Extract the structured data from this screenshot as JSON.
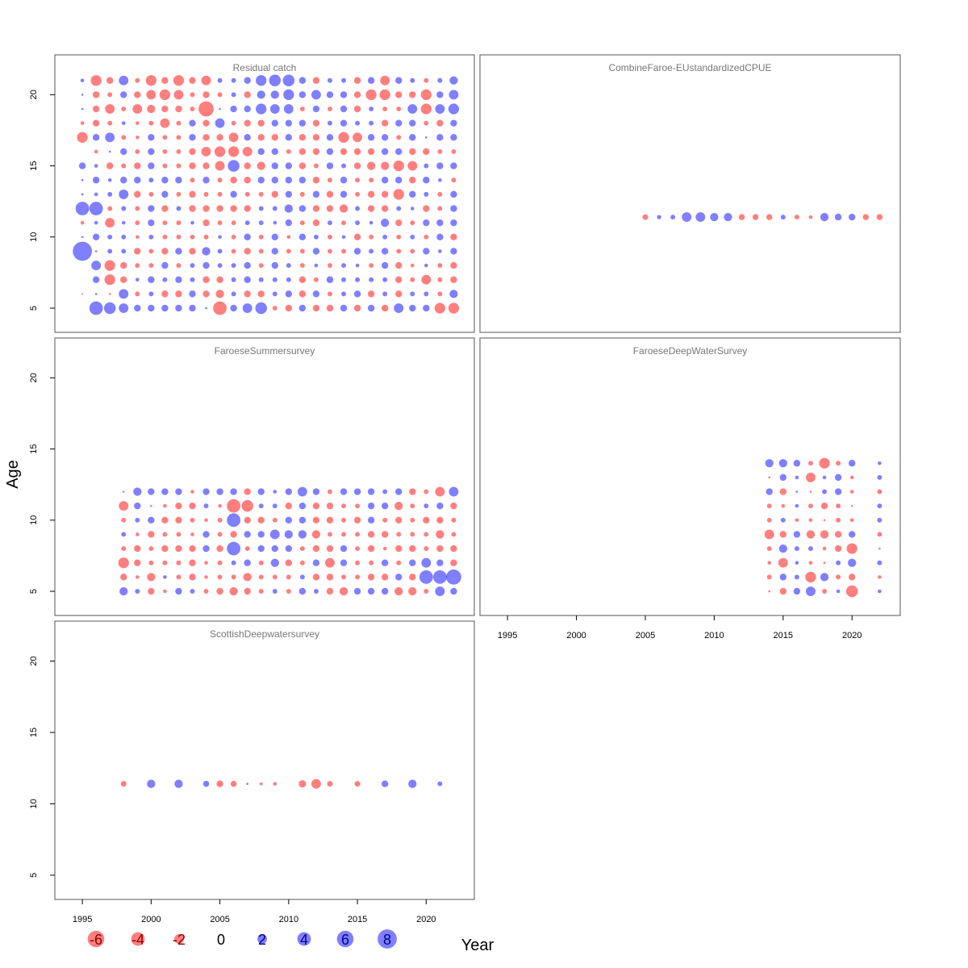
{
  "colors": {
    "positive": "#0000ff",
    "negative": "#ff0000",
    "zero": "#000000",
    "frame": "#555555"
  },
  "chart_data": {
    "type": "scatter",
    "subtype": "bubble-residuals",
    "xlabel": "Year",
    "ylabel": "Age",
    "xlim": [
      1993,
      2023.5
    ],
    "ylim": [
      3.3,
      22.8
    ],
    "xticks": [
      1995,
      2000,
      2005,
      2010,
      2015,
      2020
    ],
    "yticks": [
      5,
      10,
      15,
      20
    ],
    "legend": {
      "position": "bottom-left",
      "entries": [
        {
          "label": "-6",
          "value": -6
        },
        {
          "label": "-4",
          "value": -4
        },
        {
          "label": "-2",
          "value": -2
        },
        {
          "label": "0",
          "value": 0
        },
        {
          "label": "2",
          "value": 2
        },
        {
          "label": "4",
          "value": 4
        },
        {
          "label": "6",
          "value": 6
        },
        {
          "label": "8",
          "value": 8
        }
      ]
    },
    "panels": [
      {
        "title": "Residual catch",
        "ages": [
          5,
          6,
          7,
          8,
          9,
          10,
          11,
          12,
          13,
          14,
          15,
          16,
          17,
          18,
          19,
          20,
          21
        ],
        "years": [
          1995,
          1996,
          1997,
          1998,
          1999,
          2000,
          2001,
          2002,
          2003,
          2004,
          2005,
          2006,
          2007,
          2008,
          2009,
          2010,
          2011,
          2012,
          2013,
          2014,
          2015,
          2016,
          2017,
          2018,
          2019,
          2020,
          2021,
          2022
        ],
        "residuals": [
          [
            0,
            4,
            3,
            2,
            1,
            1,
            1,
            1,
            1,
            0.1,
            -4,
            1,
            2,
            3,
            -0.5,
            -1,
            1,
            -1,
            -1,
            1,
            -1,
            1,
            -1,
            2,
            1,
            1,
            -2.5,
            -2.5
          ],
          [
            0.05,
            0.1,
            -0.1,
            2,
            -0.5,
            0.5,
            -1,
            -1,
            1,
            -1,
            -1.5,
            0.5,
            -1,
            -1,
            0.5,
            1,
            -1,
            1,
            -0.5,
            0.5,
            1,
            -1,
            0.5,
            -1,
            0.5,
            0.5,
            -0.5,
            1.5
          ],
          [
            0,
            1,
            -2.5,
            -1,
            0.3,
            1,
            0.5,
            1,
            0.5,
            -1,
            -1,
            0.5,
            1,
            0.5,
            0.5,
            0.5,
            -1,
            -0.5,
            1,
            0.5,
            0.5,
            0.5,
            0.5,
            -1,
            -0.5,
            -2,
            -0.5,
            -1
          ],
          [
            0,
            2,
            -2.5,
            -1,
            -0.5,
            -0.5,
            1,
            -0.5,
            0.5,
            1,
            0.5,
            0.5,
            1,
            -0.5,
            1,
            0.5,
            -0.5,
            0.3,
            -0.5,
            0.5,
            0.3,
            -0.5,
            1,
            -1,
            -0.3,
            0.3,
            -0.5,
            -1
          ],
          [
            8,
            0.1,
            0.5,
            0.5,
            -1,
            -0.5,
            -1,
            1,
            -1,
            1.5,
            0.5,
            -0.5,
            -1,
            -0.5,
            1,
            -0.5,
            -0.5,
            1,
            -0.5,
            -0.5,
            1,
            0.5,
            1,
            -0.5,
            -0.5,
            1,
            0.3,
            1
          ],
          [
            0.1,
            1,
            0.5,
            0.5,
            -0.3,
            0.5,
            -0.5,
            -0.5,
            -0.5,
            -0.5,
            0.3,
            -0.5,
            1,
            -0.5,
            1,
            -0.3,
            1,
            0.5,
            -0.5,
            0.3,
            -1,
            -0.5,
            0.5,
            -0.5,
            0.5,
            -0.5,
            1,
            -1
          ],
          [
            -0.3,
            0.3,
            -2,
            0.3,
            -0.5,
            1,
            -0.5,
            -0.5,
            0.3,
            -1,
            -0.5,
            -0.5,
            0.5,
            0.5,
            0.3,
            1,
            -0.5,
            -1,
            0.5,
            -0.5,
            0.5,
            0.3,
            1.5,
            -1,
            -0.5,
            1,
            1,
            1
          ],
          [
            4,
            4,
            -0.5,
            0.5,
            -0.5,
            1,
            -1,
            0.5,
            -1,
            -1,
            -1,
            -1,
            -1,
            0.5,
            0.5,
            1.5,
            1,
            -1,
            -1,
            -1.5,
            0.5,
            -1,
            -1,
            0.5,
            0.3,
            -1,
            -0.5,
            1
          ],
          [
            0.1,
            0.3,
            0.5,
            2,
            -1,
            -0.5,
            1,
            -0.5,
            -1,
            -0.5,
            -0.5,
            1,
            -0.5,
            -0.5,
            -1,
            1,
            -0.5,
            1,
            -1,
            1,
            -0.5,
            -1,
            -1,
            -2.5,
            1,
            0.5,
            -0.5,
            1
          ],
          [
            0.1,
            1,
            0.3,
            1,
            1,
            0.5,
            1,
            1,
            -0.5,
            1,
            -0.5,
            -1,
            -1,
            1,
            1,
            1,
            1,
            -1,
            -0.5,
            1,
            -0.5,
            -0.5,
            1,
            1,
            -1,
            1,
            0.3,
            -0.5
          ],
          [
            1,
            0.3,
            -1,
            -0.5,
            -1,
            1,
            -0.5,
            -0.5,
            -1,
            -1,
            -2,
            3,
            -1,
            -1.5,
            1,
            1,
            -1,
            -0.5,
            1,
            0.5,
            -1,
            -1.5,
            -1.5,
            -2.5,
            -2,
            0.5,
            1,
            1
          ],
          [
            0,
            -0.3,
            0.1,
            1,
            -0.5,
            1,
            -0.5,
            -0.5,
            -1,
            -2,
            -2.5,
            -2.5,
            -2,
            1,
            1,
            -0.5,
            -1,
            -1,
            1,
            -1,
            -1,
            -1,
            1,
            1,
            -1,
            -1,
            -0.5,
            -0.5
          ],
          [
            -2.5,
            1,
            2,
            -0.5,
            -0.3,
            1,
            -0.5,
            -0.5,
            1,
            -1,
            -1,
            -2,
            1,
            -1,
            -1,
            1,
            -1,
            -1,
            1,
            -2.5,
            -2,
            1,
            1,
            -0.5,
            1,
            0.1,
            1,
            1
          ],
          [
            -0.3,
            -1,
            -0.5,
            0.3,
            -0.3,
            -0.5,
            -2,
            -0.5,
            1,
            -1,
            2,
            -0.5,
            -1,
            -1,
            1,
            1,
            1,
            -1,
            0.5,
            1,
            0.5,
            0.5,
            -1,
            1,
            1,
            -0.5,
            -1,
            1
          ],
          [
            0.1,
            -1,
            -2,
            -0.5,
            -2,
            -1.5,
            -1,
            -1,
            -0.5,
            -5,
            0.1,
            1,
            1,
            2.5,
            2,
            2,
            -0.5,
            1,
            -0.5,
            1,
            -1,
            0.5,
            -0.5,
            -0.5,
            2,
            -2.5,
            2,
            2.5
          ],
          [
            0.1,
            -1,
            -0.5,
            1,
            -1,
            -2,
            -2.5,
            -2,
            -0.5,
            -1,
            -0.5,
            0.5,
            -1,
            1.5,
            1.5,
            2.5,
            1,
            2,
            1,
            1,
            -1,
            -2.5,
            -2.5,
            -1,
            -1,
            -2.5,
            1,
            2
          ],
          [
            0.3,
            -2.5,
            -1,
            2,
            -0.5,
            -2.5,
            -1,
            -2.5,
            -1,
            -2,
            0.5,
            0.5,
            1,
            2.5,
            3,
            3,
            1,
            -1,
            0.5,
            0.5,
            -1,
            1,
            -2,
            1,
            0.5,
            -0.5,
            0.5,
            1.5
          ]
        ]
      },
      {
        "title": "CombineFaroe-EUstandardizedCPUE",
        "ages": [
          11.4
        ],
        "years": [
          2005,
          2006,
          2007,
          2008,
          2009,
          2010,
          2011,
          2012,
          2013,
          2014,
          2015,
          2016,
          2017,
          2018,
          2019,
          2020,
          2021,
          2022
        ],
        "residuals": [
          [
            -0.7,
            0.4,
            0.5,
            2,
            2,
            1.5,
            1.5,
            -0.8,
            -0.8,
            -0.8,
            0.5,
            -0.5,
            -0.3,
            1.5,
            1,
            1,
            -0.8,
            -0.8
          ]
        ]
      },
      {
        "title": "FaroeseSummersurvey",
        "ages": [
          5,
          6,
          7,
          8,
          9,
          10,
          11,
          12
        ],
        "years": [
          1998,
          1999,
          2000,
          2001,
          2002,
          2003,
          2004,
          2005,
          2006,
          2007,
          2008,
          2009,
          2010,
          2011,
          2012,
          2013,
          2014,
          2015,
          2016,
          2017,
          2018,
          2019,
          2020,
          2021,
          2022
        ],
        "residuals": [
          [
            1.5,
            0.5,
            -1,
            -0.3,
            1,
            0.5,
            -0.5,
            -1,
            -1.5,
            -1,
            -0.5,
            0.5,
            -0.5,
            1,
            0.5,
            -1,
            -1.5,
            1,
            1,
            1,
            -1.5,
            -1.5,
            -0.5,
            2,
            1
          ],
          [
            -1,
            -0.3,
            -1.5,
            0.3,
            -0.5,
            -1,
            -0.3,
            -0.5,
            -0.5,
            -1.5,
            -0.5,
            -0.5,
            -0.5,
            0.5,
            -1,
            -1,
            -0.5,
            -0.5,
            -1,
            -1,
            1,
            -1,
            4,
            4,
            5
          ],
          [
            -2.5,
            -1,
            -0.5,
            -0.5,
            -0.5,
            -1,
            -0.3,
            -0.5,
            0.5,
            1,
            -0.5,
            1.5,
            -1,
            -0.5,
            1,
            -2,
            1,
            -0.5,
            -0.5,
            1,
            -0.5,
            1,
            2,
            1,
            -1
          ],
          [
            -0.5,
            -1,
            -0.5,
            -1,
            -1,
            -1,
            1,
            -1,
            4,
            -0.5,
            1,
            1,
            1,
            -0.5,
            -1,
            -1,
            1,
            -0.5,
            -1,
            -0.3,
            -1,
            -1,
            -0.5,
            -1,
            -1
          ],
          [
            0.5,
            -0.3,
            -1,
            -0.5,
            -0.5,
            -0.3,
            1,
            -0.5,
            -1,
            1,
            1,
            2,
            1.5,
            1.5,
            -1.5,
            -0.5,
            -0.5,
            -0.5,
            -1,
            -1,
            -0.5,
            -0.5,
            -0.5,
            -1.5,
            -0.5
          ],
          [
            -0.5,
            0.5,
            1,
            -1,
            -1,
            -0.5,
            -0.3,
            -0.5,
            4,
            -1,
            -1,
            -0.5,
            1,
            1,
            -1,
            -1,
            -0.5,
            -1,
            1,
            -0.5,
            -1,
            -0.5,
            -1,
            -1,
            -0.5
          ],
          [
            -2,
            1,
            -0.1,
            -0.3,
            -1,
            -1,
            0.5,
            -0.3,
            -4,
            -3,
            0.5,
            0.5,
            -1,
            1,
            -1,
            -1,
            -0.5,
            -0.5,
            1,
            1,
            -1.5,
            -0.5,
            0.5,
            1,
            -1
          ],
          [
            -0.1,
            1.5,
            1,
            1,
            1,
            -0.3,
            1,
            1,
            1,
            -1,
            1,
            0.3,
            1,
            2,
            1,
            -0.5,
            1,
            1,
            1,
            0.5,
            1,
            -1,
            -0.5,
            -2,
            2
          ]
        ]
      },
      {
        "title": "FaroeseDeepWaterSurvey",
        "ages": [
          5,
          6,
          7,
          8,
          9,
          10,
          11,
          12,
          13,
          14
        ],
        "years": [
          2014,
          2015,
          2016,
          2017,
          2018,
          2019,
          2020,
          2022
        ],
        "residuals": [
          [
            -0.1,
            -1,
            1,
            2,
            -0.5,
            0.3,
            -3,
            0.3
          ],
          [
            -0.5,
            1,
            0.5,
            -2.5,
            1.5,
            -0.5,
            -1,
            -0.3
          ],
          [
            -0.3,
            -2,
            0.3,
            -0.3,
            -0.1,
            0.5,
            1.5,
            0.5
          ],
          [
            -0.5,
            1.5,
            0.5,
            0.5,
            -0.3,
            -1,
            -2.5,
            -0.1
          ],
          [
            -2,
            -1,
            1,
            -1.5,
            -1.5,
            -1,
            1,
            -0.5
          ],
          [
            -0.5,
            0.5,
            -0.3,
            -0.3,
            -0.1,
            -0.5,
            -0.3,
            0.5
          ],
          [
            -0.5,
            -0.3,
            0.3,
            -0.5,
            -1,
            -0.5,
            -0.1,
            0.5
          ],
          [
            1,
            -1,
            0.1,
            -0.1,
            0.5,
            1,
            -0.3,
            -0.5
          ],
          [
            -0.1,
            1,
            0.3,
            -2,
            0.3,
            1,
            -0.3,
            0.5
          ],
          [
            1.5,
            1.5,
            1,
            -0.5,
            -2.5,
            -0.5,
            1,
            0.3
          ]
        ]
      },
      {
        "title": "ScottishDeepwatersurvey",
        "ages": [
          11.4
        ],
        "years": [
          1998,
          2000,
          2002,
          2004,
          2005,
          2006,
          2007,
          2008,
          2009,
          2011,
          2012,
          2013,
          2015,
          2017,
          2019,
          2021
        ],
        "residuals": [
          [
            -0.7,
            1.5,
            1.5,
            0.8,
            -1,
            -0.8,
            0.1,
            -0.2,
            -0.3,
            -1.2,
            -2,
            -0.7,
            -0.7,
            1,
            1.5,
            0.5
          ]
        ]
      }
    ]
  }
}
